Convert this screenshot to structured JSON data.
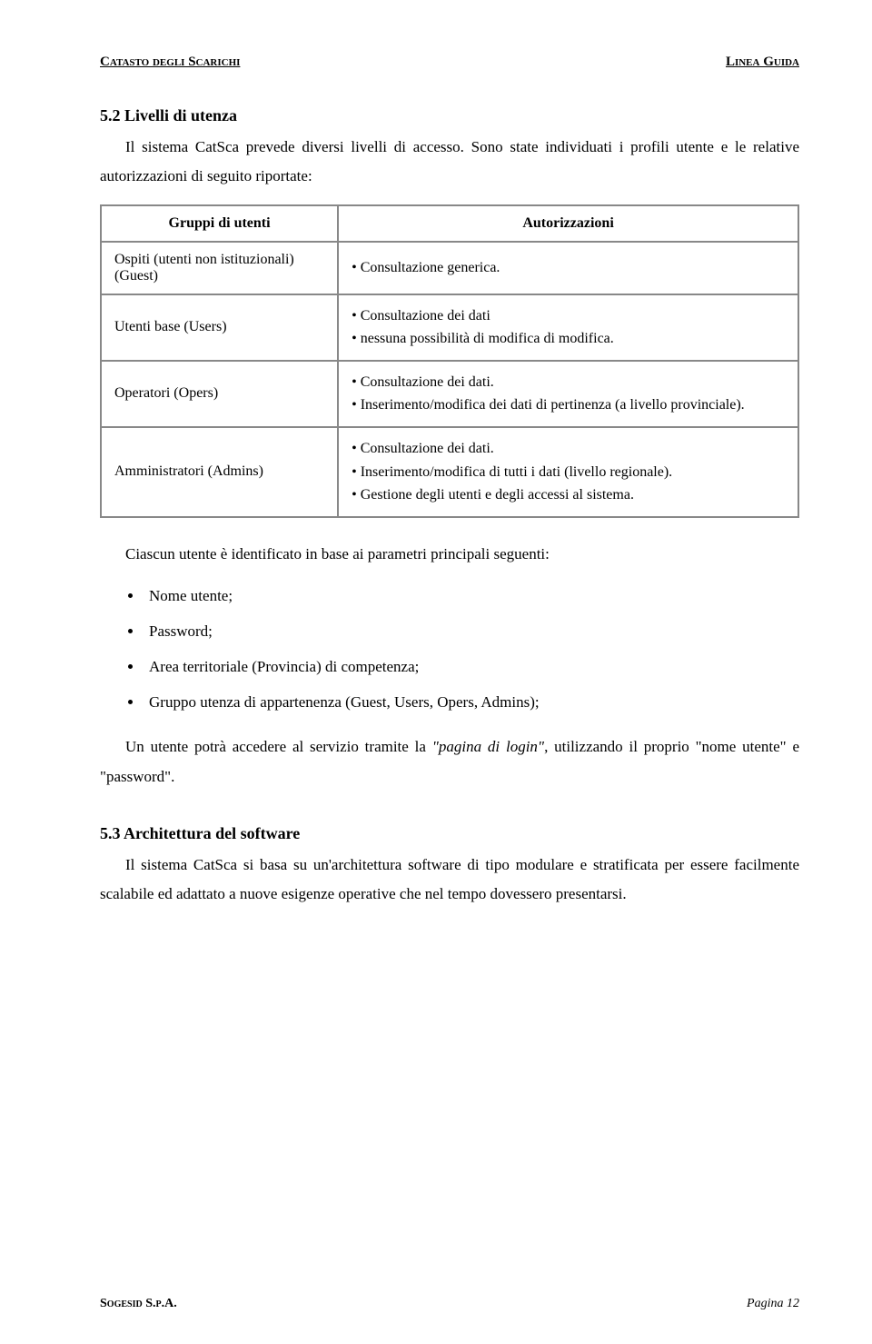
{
  "header": {
    "left": "Catasto degli Scarichi",
    "right": "Linea Guida"
  },
  "section1": {
    "title": "5.2 Livelli di utenza",
    "p1": "Il sistema CatSca prevede diversi livelli di accesso. Sono state individuati i profili utente e le relative autorizzazioni di seguito riportate:"
  },
  "table": {
    "head_left": "Gruppi di utenti",
    "head_right": "Autorizzazioni",
    "rows": [
      {
        "left": "Ospiti (utenti non istituzionali) (Guest)",
        "right": "• Consultazione generica."
      },
      {
        "left": "Utenti base (Users)",
        "right": "• Consultazione dei dati\n• nessuna possibilità di modifica di modifica."
      },
      {
        "left": "Operatori (Opers)",
        "right": "• Consultazione dei dati.\n• Inserimento/modifica dei dati di pertinenza (a livello provinciale)."
      },
      {
        "left": "Amministratori (Admins)",
        "right": "• Consultazione dei dati.\n• Inserimento/modifica di tutti i dati (livello regionale).\n• Gestione degli utenti e degli accessi al sistema."
      }
    ]
  },
  "after_table": {
    "lead": "Ciascun utente è identificato in base ai parametri principali seguenti:",
    "items": [
      "Nome utente;",
      "Password;",
      "Area territoriale (Provincia) di competenza;",
      "Gruppo utenza di appartenenza (Guest, Users, Opers, Admins);"
    ],
    "p2a": "Un utente potrà accedere al servizio tramite la ",
    "p2b": "\"pagina di login\"",
    "p2c": ", utilizzando il proprio \"nome utente\" e \"password\"."
  },
  "section2": {
    "title": "5.3 Architettura del software",
    "p1": "Il sistema CatSca si basa su un'architettura software di tipo modulare e stratificata per essere facilmente scalabile ed adattato a nuove esigenze operative che nel tempo dovessero presentarsi."
  },
  "footer": {
    "left": "Sogesid S.p.A.",
    "right": "Pagina 12"
  }
}
